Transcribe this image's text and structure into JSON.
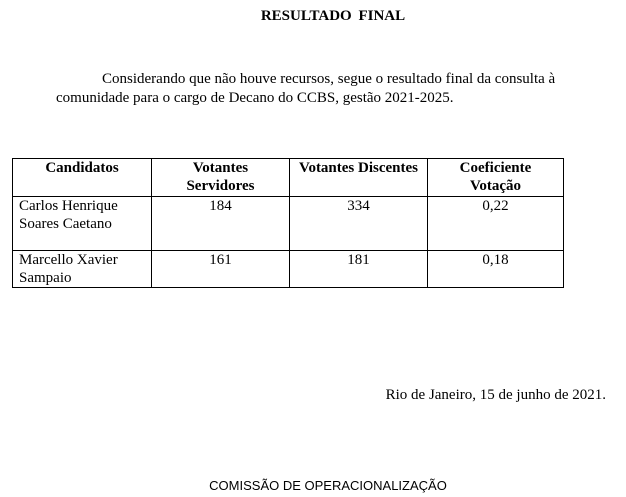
{
  "title": "RESULTADO  FINAL",
  "paragraph": "Considerando que não houve recursos, segue o resultado final da consulta à comunidade para o cargo de Decano do CCBS, gestão 2021-2025.",
  "table": {
    "headers": [
      "Candidatos",
      "Votantes Servidores",
      "Votantes Discentes",
      "Coeficiente Votação"
    ],
    "rows": [
      [
        "Carlos Henrique Soares Caetano",
        "184",
        "334",
        "0,22"
      ],
      [
        "Marcello Xavier Sampaio",
        "161",
        "181",
        "0,18"
      ]
    ]
  },
  "date_line": "Rio de Janeiro, 15 de junho de 2021.",
  "signature": "COMISSÃO DE OPERACIONALIZAÇÃO"
}
